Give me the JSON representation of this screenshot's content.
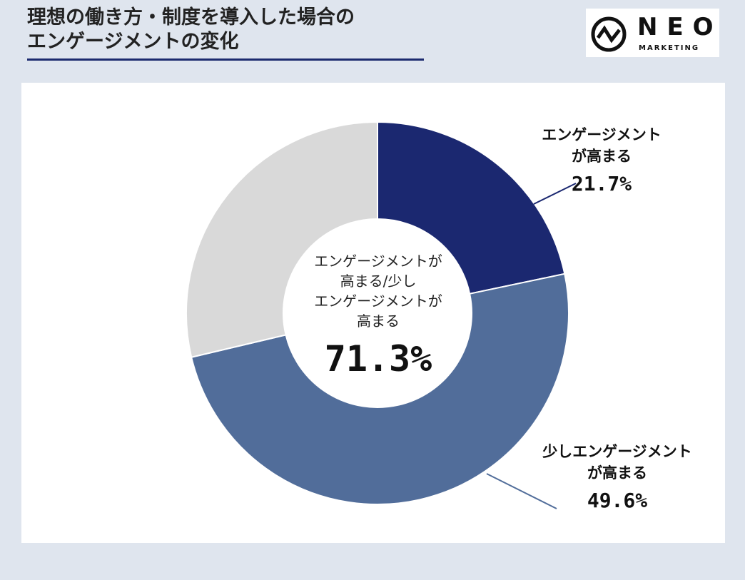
{
  "title": {
    "line1": "理想の働き方・制度を導入した場合の",
    "line2": "エンゲージメントの変化"
  },
  "logo": {
    "name": "NEO",
    "sub": "MARKETING"
  },
  "colors": {
    "background": "#dfe5ee",
    "accent": "#1c2a6e",
    "slice_high": "#1b2870",
    "slice_slight": "#516d9a",
    "slice_other": "#d9d9d9"
  },
  "chart_data": {
    "type": "pie",
    "donut": true,
    "slices": [
      {
        "label_line1": "エンゲージメント",
        "label_line2": "が高まる",
        "value": 21.7,
        "value_text": "21.7%",
        "color": "#1b2870"
      },
      {
        "label_line1": "少しエンゲージメント",
        "label_line2": "が高まる",
        "value": 49.6,
        "value_text": "49.6%",
        "color": "#516d9a"
      },
      {
        "label_line1": "",
        "label_line2": "",
        "value": 28.7,
        "value_text": "",
        "color": "#d9d9d9"
      }
    ],
    "center": {
      "line1": "エンゲージメントが",
      "line2": "高まる/少し",
      "line3": "エンゲージメントが",
      "line4": "高まる",
      "value_text": "71.3%"
    }
  }
}
